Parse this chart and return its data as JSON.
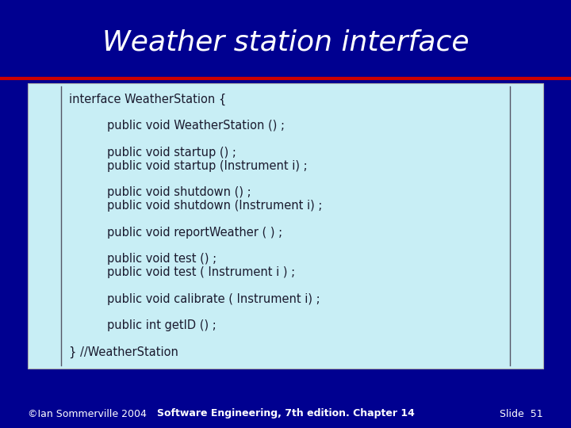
{
  "title": "Weather station interface",
  "title_color": "#FFFFFF",
  "title_fontsize": 26,
  "bg_color": "#000090",
  "red_line_color": "#CC0000",
  "box_bg_color": "#C8EEF5",
  "footer_left": "©Ian Sommerville 2004",
  "footer_center": "Software Engineering, 7th edition. Chapter 14",
  "footer_right": "Slide  51",
  "footer_color": "#FFFFFF",
  "footer_fontsize": 9,
  "code_lines": [
    {
      "text": "interface WeatherStation {",
      "indent": 0,
      "bold_word": ""
    },
    {
      "text": "",
      "indent": 0,
      "bold_word": ""
    },
    {
      "text": "public void WeatherStation () ;",
      "indent": 1,
      "bold_word": ""
    },
    {
      "text": "",
      "indent": 0,
      "bold_word": ""
    },
    {
      "text": "public void startup () ;",
      "indent": 1,
      "bold_word": "startup"
    },
    {
      "text": "public void startup (Instrument i) ;",
      "indent": 1,
      "bold_word": "startup"
    },
    {
      "text": "",
      "indent": 0,
      "bold_word": ""
    },
    {
      "text": "public void shutdown () ;",
      "indent": 1,
      "bold_word": "shutdown"
    },
    {
      "text": "public void shutdown (Instrument i) ;",
      "indent": 1,
      "bold_word": "shutdown"
    },
    {
      "text": "",
      "indent": 0,
      "bold_word": ""
    },
    {
      "text": "public void reportWeather ( ) ;",
      "indent": 1,
      "bold_word": "reportWeather"
    },
    {
      "text": "",
      "indent": 0,
      "bold_word": ""
    },
    {
      "text": "public void test () ;",
      "indent": 1,
      "bold_word": "test"
    },
    {
      "text": "public void test ( Instrument i ) ;",
      "indent": 1,
      "bold_word": "test"
    },
    {
      "text": "",
      "indent": 0,
      "bold_word": ""
    },
    {
      "text": "public void calibrate ( Instrument i) ;",
      "indent": 1,
      "bold_word": "calibrate"
    },
    {
      "text": "",
      "indent": 0,
      "bold_word": ""
    },
    {
      "text": "public int getID () ;",
      "indent": 1,
      "bold_word": "getID"
    },
    {
      "text": "",
      "indent": 0,
      "bold_word": ""
    },
    {
      "text": "} //WeatherStation",
      "indent": 0,
      "bold_word": ""
    }
  ],
  "code_fontsize": 10.5,
  "code_color": "#1a1a2e"
}
